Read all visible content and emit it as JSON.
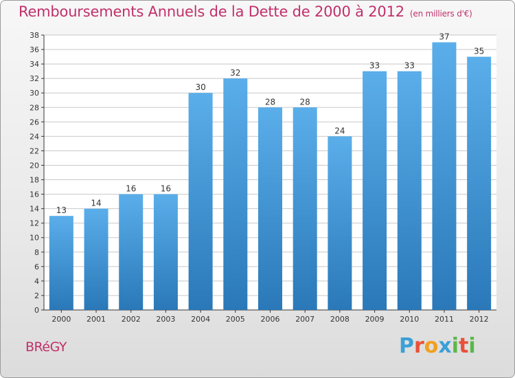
{
  "title": "Remboursements Annuels de la Dette de 2000 à 2012",
  "unit_note": "(en milliers d'€)",
  "commune": "BRéGY",
  "brand": {
    "letters": [
      "P",
      "r",
      "o",
      "x",
      "i",
      "t",
      "i"
    ],
    "colors": [
      "#3aa0d8",
      "#e8503a",
      "#f0a020",
      "#3aa0d8",
      "#5ab84a",
      "#e8503a",
      "#5ab84a"
    ]
  },
  "colors": {
    "title": "#c0306a",
    "bar_top": "#5aaeea",
    "bar_bottom": "#2a78b8",
    "grid": "#c8c8c8",
    "axis": "#333333"
  },
  "chart_data": {
    "type": "bar",
    "title": "Remboursements Annuels de la Dette de 2000 à 2012",
    "categories": [
      "2000",
      "2001",
      "2002",
      "2003",
      "2004",
      "2005",
      "2006",
      "2007",
      "2008",
      "2009",
      "2010",
      "2011",
      "2012"
    ],
    "values": [
      13,
      14,
      16,
      16,
      30,
      32,
      28,
      28,
      24,
      33,
      33,
      37,
      35
    ],
    "ylim": [
      0,
      38
    ],
    "yticks": [
      0,
      2,
      4,
      6,
      8,
      10,
      12,
      14,
      16,
      18,
      20,
      22,
      24,
      26,
      28,
      30,
      32,
      34,
      36,
      38
    ],
    "xlabel": "",
    "ylabel": "",
    "grid": true
  }
}
